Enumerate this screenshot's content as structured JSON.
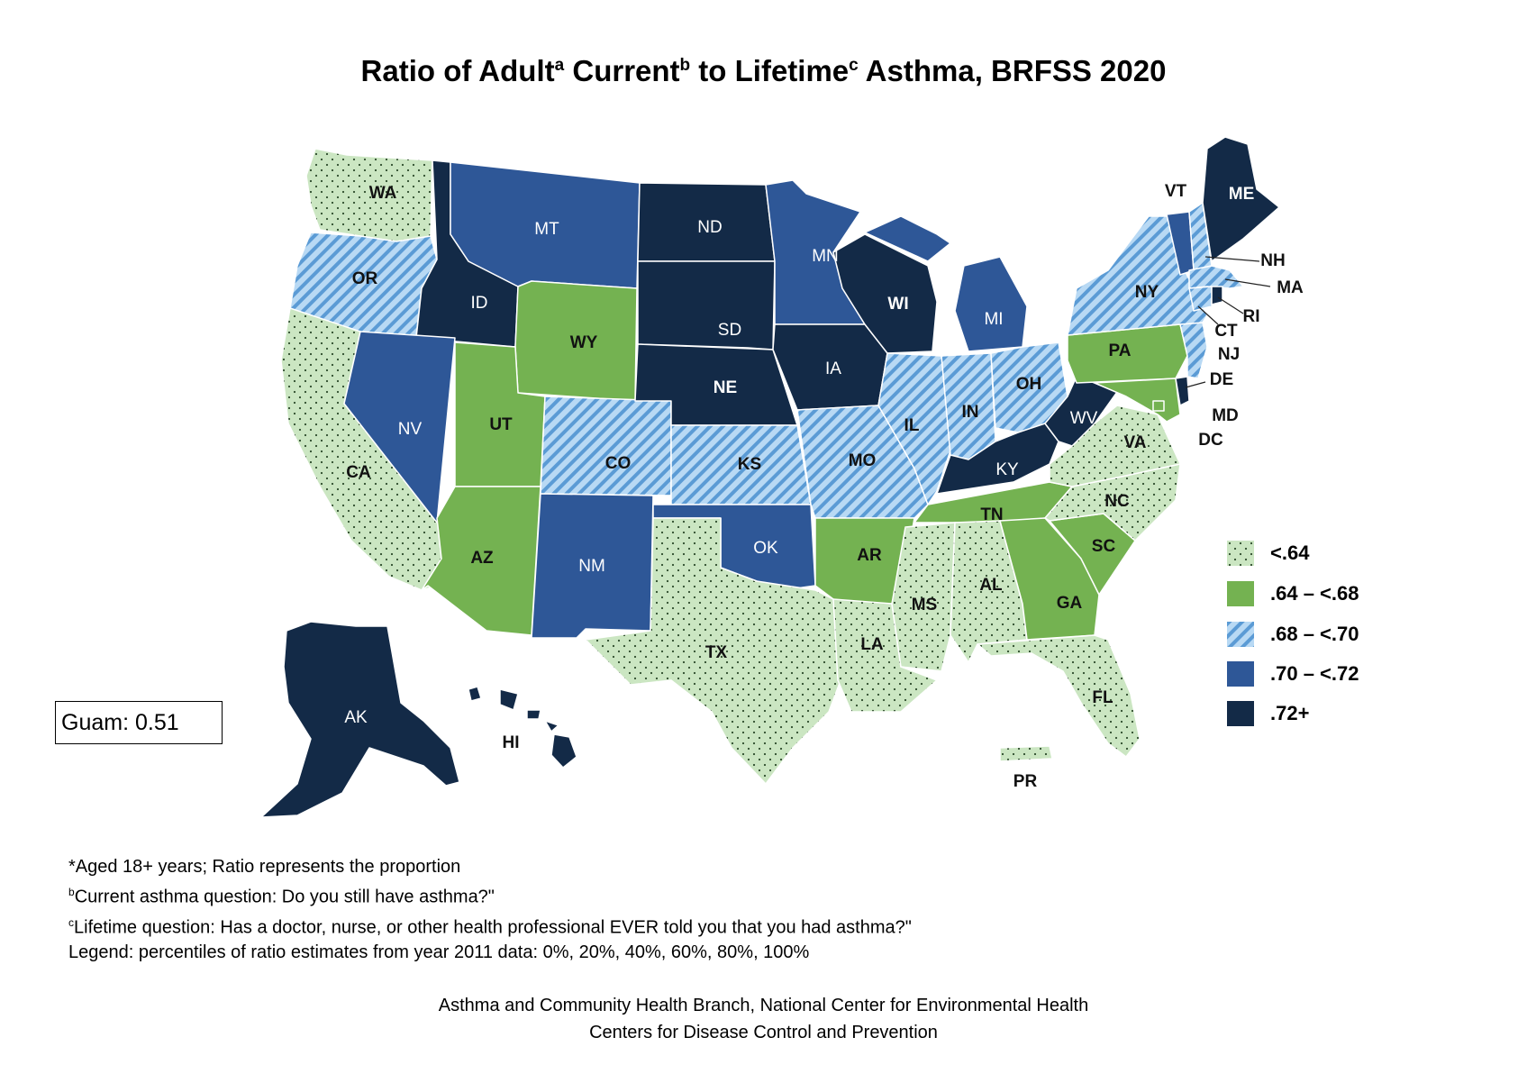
{
  "title": {
    "prefix": "Ratio of Adult",
    "sup_a": "a",
    "word_current": " Current",
    "sup_b": "b",
    "word_lifetime": " to Lifetime",
    "sup_c": "c",
    "suffix": " Asthma, BRFSS 2020"
  },
  "guam": "Guam: 0.51",
  "legend": [
    {
      "label": "<.64"
    },
    {
      "label": ".64 – <.68"
    },
    {
      "label": ".68 – <.70"
    },
    {
      "label": ".70 – <.72"
    },
    {
      "label": ".72+"
    }
  ],
  "colors": {
    "cat0": "#cbe6c2",
    "cat1": "#74b251",
    "cat2_light": "#b8d9f4",
    "cat2_stripe": "#5b9bd5",
    "cat3": "#2e5797",
    "cat4": "#132a47",
    "border": "#ffffff"
  },
  "states": [
    {
      "abbr": "WA",
      "category": 0
    },
    {
      "abbr": "OR",
      "category": 2
    },
    {
      "abbr": "CA",
      "category": 0
    },
    {
      "abbr": "ID",
      "category": 4
    },
    {
      "abbr": "NV",
      "category": 3
    },
    {
      "abbr": "MT",
      "category": 3
    },
    {
      "abbr": "WY",
      "category": 1
    },
    {
      "abbr": "UT",
      "category": 1
    },
    {
      "abbr": "AZ",
      "category": 1
    },
    {
      "abbr": "CO",
      "category": 2
    },
    {
      "abbr": "NM",
      "category": 3
    },
    {
      "abbr": "ND",
      "category": 4
    },
    {
      "abbr": "SD",
      "category": 4
    },
    {
      "abbr": "NE",
      "category": 4
    },
    {
      "abbr": "KS",
      "category": 2
    },
    {
      "abbr": "OK",
      "category": 3
    },
    {
      "abbr": "TX",
      "category": 0
    },
    {
      "abbr": "MN",
      "category": 3
    },
    {
      "abbr": "IA",
      "category": 4
    },
    {
      "abbr": "MO",
      "category": 2
    },
    {
      "abbr": "AR",
      "category": 1
    },
    {
      "abbr": "LA",
      "category": 0
    },
    {
      "abbr": "WI",
      "category": 4
    },
    {
      "abbr": "IL",
      "category": 2
    },
    {
      "abbr": "MI",
      "category": 3
    },
    {
      "abbr": "IN",
      "category": 2
    },
    {
      "abbr": "OH",
      "category": 2
    },
    {
      "abbr": "KY",
      "category": 4
    },
    {
      "abbr": "TN",
      "category": 1
    },
    {
      "abbr": "MS",
      "category": 0
    },
    {
      "abbr": "AL",
      "category": 0
    },
    {
      "abbr": "GA",
      "category": 1
    },
    {
      "abbr": "FL",
      "category": 0
    },
    {
      "abbr": "SC",
      "category": 1
    },
    {
      "abbr": "NC",
      "category": 0
    },
    {
      "abbr": "VA",
      "category": 0
    },
    {
      "abbr": "WV",
      "category": 4
    },
    {
      "abbr": "PA",
      "category": 1
    },
    {
      "abbr": "NY",
      "category": 2
    },
    {
      "abbr": "VT",
      "category": 3
    },
    {
      "abbr": "NH",
      "category": 2
    },
    {
      "abbr": "ME",
      "category": 4
    },
    {
      "abbr": "MA",
      "category": 2
    },
    {
      "abbr": "RI",
      "category": 4
    },
    {
      "abbr": "CT",
      "category": 2
    },
    {
      "abbr": "NJ",
      "category": 2
    },
    {
      "abbr": "DE",
      "category": 4
    },
    {
      "abbr": "MD",
      "category": 1
    },
    {
      "abbr": "DC",
      "category": 1
    },
    {
      "abbr": "AK",
      "category": 4
    },
    {
      "abbr": "HI",
      "category": 4
    },
    {
      "abbr": "PR",
      "category": 0
    }
  ],
  "notes": {
    "line1": "*Aged 18+ years; Ratio represents the proportion",
    "line2_sup": "b",
    "line2": "Current asthma question: Do you still have asthma?\"",
    "line3_sup": "c",
    "line3": "Lifetime question: Has a doctor, nurse, or other health professional EVER told you that you had asthma?\"",
    "line4": "Legend: percentiles of ratio estimates from year 2011 data: 0%, 20%, 40%, 60%, 80%, 100%"
  },
  "credits": {
    "line1": "Asthma and Community Health Branch, National Center for Environmental Health",
    "line2": "Centers for Disease Control and Prevention"
  }
}
